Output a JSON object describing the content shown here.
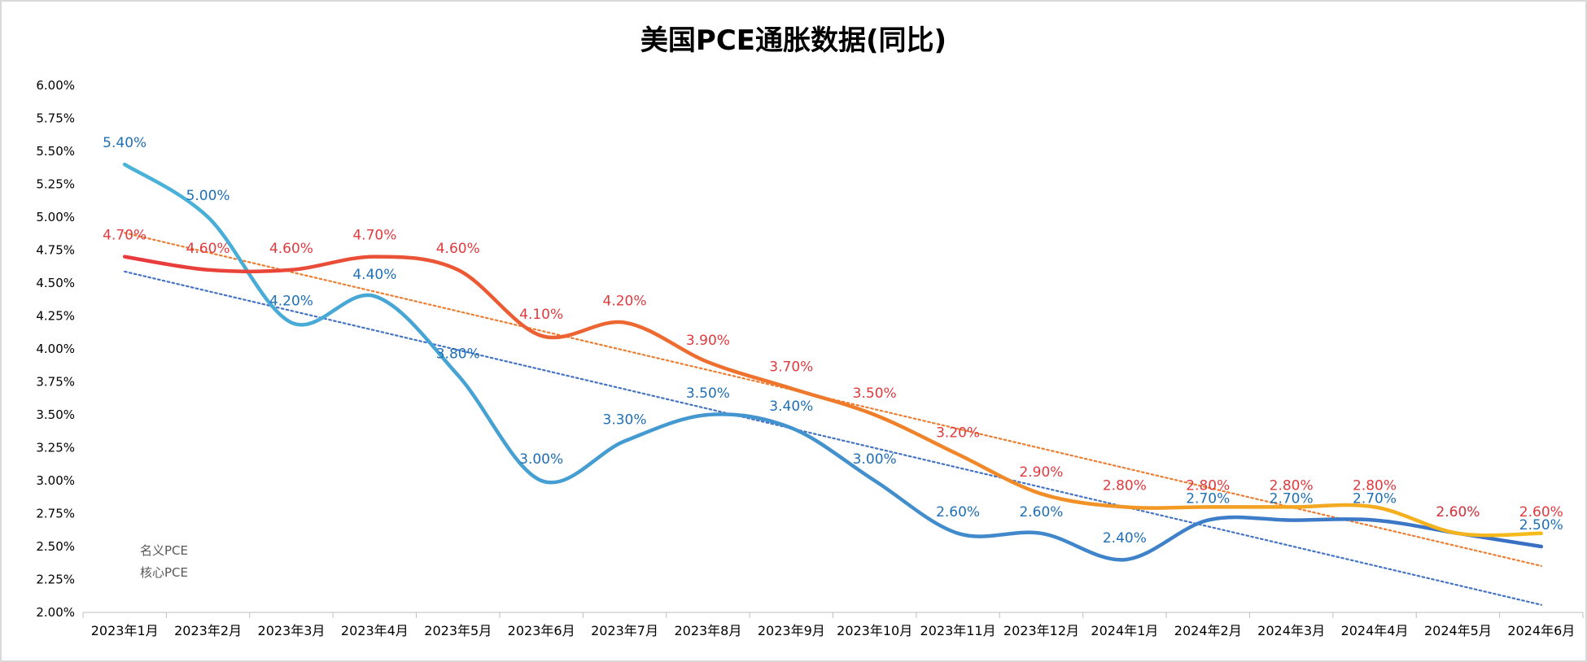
{
  "chart_data": {
    "type": "line",
    "title": "美国PCE通胀数据(同比)",
    "categories": [
      "2023年1月",
      "2023年2月",
      "2023年3月",
      "2023年4月",
      "2023年5月",
      "2023年6月",
      "2023年7月",
      "2023年8月",
      "2023年9月",
      "2023年10月",
      "2023年11月",
      "2023年12月",
      "2024年1月",
      "2024年2月",
      "2024年3月",
      "2024年4月",
      "2024年5月",
      "2024年6月"
    ],
    "y_ticks": [
      "2.00%",
      "2.25%",
      "2.50%",
      "2.75%",
      "3.00%",
      "3.25%",
      "3.50%",
      "3.75%",
      "4.00%",
      "4.25%",
      "4.50%",
      "4.75%",
      "5.00%",
      "5.25%",
      "5.50%",
      "5.75%",
      "6.00%"
    ],
    "ylim": [
      2.0,
      6.0
    ],
    "smooth": true,
    "trendlines": true,
    "grid": false,
    "legend_position": "bottom-left",
    "series": [
      {
        "name": "名义PCE",
        "values": [
          5.4,
          5.0,
          4.2,
          4.4,
          3.8,
          3.0,
          3.3,
          3.5,
          3.4,
          3.0,
          2.6,
          2.6,
          2.4,
          2.7,
          2.7,
          2.7,
          2.6,
          2.5
        ],
        "labels": [
          "5.40%",
          "5.00%",
          "4.20%",
          "4.40%",
          "3.80%",
          "3.00%",
          "3.30%",
          "3.50%",
          "3.40%",
          "3.00%",
          "2.60%",
          "2.60%",
          "2.40%",
          "2.70%",
          "2.70%",
          "2.70%",
          "2.60%",
          "2.50%"
        ],
        "gradient": [
          "#4ab3d8",
          "#3a6fc4"
        ],
        "label_color": "#1f6fb5",
        "trend_color": "#4472c4"
      },
      {
        "name": "核心PCE",
        "values": [
          4.7,
          4.6,
          4.6,
          4.7,
          4.6,
          4.1,
          4.2,
          3.9,
          3.7,
          3.5,
          3.2,
          2.9,
          2.8,
          2.8,
          2.8,
          2.8,
          2.6,
          2.6
        ],
        "labels": [
          "4.70%",
          "4.60%",
          "4.60%",
          "4.70%",
          "4.60%",
          "4.10%",
          "4.20%",
          "3.90%",
          "3.70%",
          "3.50%",
          "3.20%",
          "2.90%",
          "2.80%",
          "2.80%",
          "2.80%",
          "2.80%",
          "2.60%",
          "2.60%"
        ],
        "gradient": [
          "#e8393c",
          "#f5bc1c"
        ],
        "label_color": "#e03a3e",
        "trend_color": "#ed7d31"
      }
    ]
  }
}
